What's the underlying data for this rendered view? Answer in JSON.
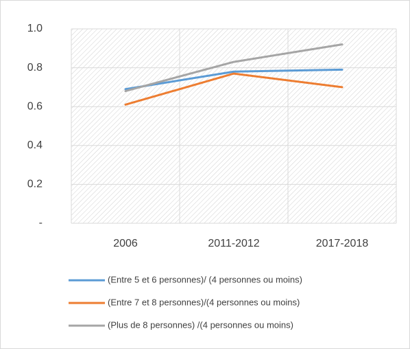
{
  "chart_data": {
    "type": "line",
    "categories": [
      "2006",
      "2011-2012",
      "2017-2018"
    ],
    "series": [
      {
        "name": "(Entre 5 et 6 personnes)/ (4 personnes ou moins)",
        "color": "#5b9bd5",
        "values": [
          0.69,
          0.78,
          0.79
        ]
      },
      {
        "name": "(Entre 7 et 8 personnes)/(4 personnes ou moins)",
        "color": "#ed7d31",
        "values": [
          0.61,
          0.77,
          0.7
        ]
      },
      {
        "name": "(Plus de 8 personnes) /(4 personnes ou moins)",
        "color": "#a5a5a5",
        "values": [
          0.68,
          0.83,
          0.92
        ]
      }
    ],
    "ylim": [
      0,
      1
    ],
    "yticks": [
      {
        "value": 0,
        "label": "-"
      },
      0.2,
      0.4,
      0.6,
      0.8,
      {
        "value": 1,
        "label": "1.0"
      }
    ],
    "grid": true,
    "legend": "bottom"
  }
}
